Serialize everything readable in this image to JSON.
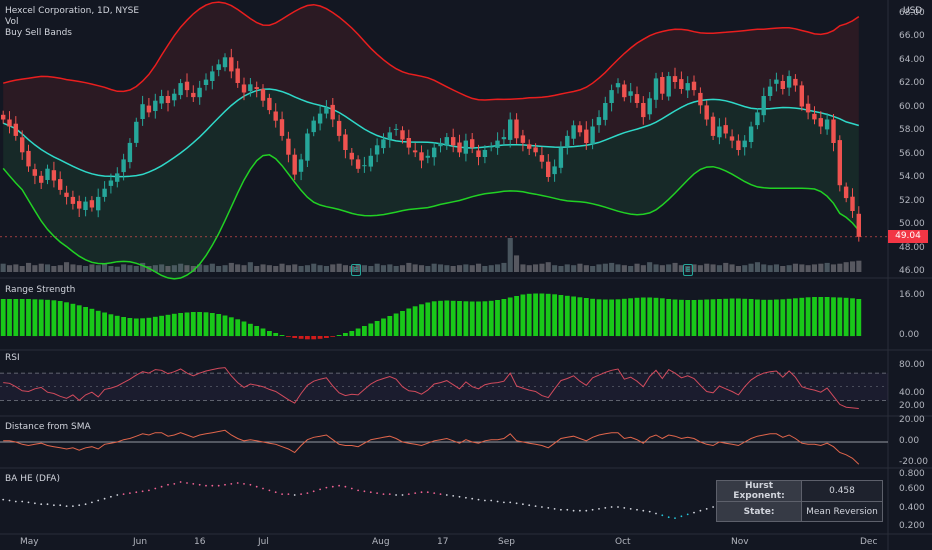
{
  "header": {
    "symbol_line": "Hexcel Corporation, 1D, NYSE",
    "vol_label": "Vol",
    "indicator_label": "Buy Sell Bands"
  },
  "currency": "USD",
  "last_price": "49.04",
  "panes": {
    "range_strength": "Range Strength",
    "rsi": "RSI",
    "distance": "Distance from SMA",
    "hurst": "BA HE (DFA)"
  },
  "hurst_table": {
    "exponent_label": "Hurst Exponent:",
    "exponent_value": "0.458",
    "state_label": "State:",
    "state_value": "Mean Reversion"
  },
  "earnings_marker": "E",
  "axes": {
    "price_ticks": [
      "68.00",
      "66.00",
      "64.00",
      "62.00",
      "60.00",
      "58.00",
      "56.00",
      "54.00",
      "52.00",
      "50.00",
      "48.00",
      "46.00"
    ],
    "range_ticks": [
      "16.00",
      "0.00"
    ],
    "rsi_ticks": [
      "80.00",
      "40.00",
      "20.00"
    ],
    "dist_ticks": [
      "20.00",
      "0.00",
      "-20.00"
    ],
    "hurst_ticks": [
      "0.800",
      "0.600",
      "0.400",
      "0.200"
    ],
    "x_ticks": [
      "May",
      "Jun",
      "16",
      "Jul",
      "Aug",
      "17",
      "Sep",
      "Oct",
      "Nov",
      "Dec"
    ]
  },
  "colors": {
    "background": "#131722",
    "up": "#26a69a",
    "down": "#ef5350",
    "upper_band": "#e91e1e",
    "mid_band": "#2fd8c8",
    "lower_band": "#21d124",
    "range_pos": "#19c819",
    "range_neg": "#d01b1b",
    "rsi_line": "#d14a5c",
    "dist_line": "#e0654b"
  },
  "chart_data": [
    {
      "type": "candlestick",
      "title": "Hexcel Corporation, 1D, NYSE",
      "ylim": [
        46,
        68.5
      ],
      "series": [
        {
          "name": "Close",
          "values": [
            59.0,
            58.4,
            57.6,
            56.2,
            55.0,
            54.2,
            53.6,
            54.8,
            53.8,
            53.0,
            52.4,
            51.8,
            51.4,
            52.0,
            51.5,
            52.4,
            53.1,
            53.8,
            54.4,
            55.6,
            57.0,
            58.8,
            60.3,
            59.6,
            60.6,
            61.0,
            60.4,
            61.2,
            62.1,
            61.5,
            60.9,
            61.7,
            62.4,
            63.1,
            63.7,
            64.3,
            63.1,
            62.1,
            61.3,
            62.0,
            61.6,
            60.6,
            59.8,
            58.9,
            57.6,
            56.0,
            54.3,
            55.6,
            57.8,
            58.9,
            59.5,
            60.0,
            59.0,
            57.6,
            56.4,
            55.6,
            54.8,
            55.1,
            55.9,
            56.8,
            57.3,
            57.9,
            58.2,
            57.3,
            56.6,
            56.2,
            55.5,
            55.9,
            56.6,
            57.0,
            57.5,
            56.8,
            56.2,
            57.2,
            56.6,
            55.8,
            56.4,
            56.7,
            57.2,
            57.5,
            59.0,
            57.4,
            57.0,
            56.5,
            56.2,
            55.4,
            54.1,
            55.0,
            56.6,
            57.6,
            58.5,
            57.9,
            57.0,
            58.4,
            59.2,
            60.4,
            61.5,
            62.1,
            60.9,
            61.4,
            60.4,
            59.2,
            60.8,
            62.5,
            61.2,
            62.7,
            62.2,
            61.6,
            62.1,
            61.5,
            60.2,
            59.0,
            57.6,
            58.4,
            57.8,
            57.2,
            56.4,
            57.2,
            58.4,
            59.6,
            61.0,
            61.8,
            62.4,
            61.6,
            62.7,
            61.9,
            60.1,
            59.6,
            59.0,
            58.4,
            59.0,
            57.0,
            53.4,
            52.3,
            51.2,
            49.0
          ]
        }
      ],
      "annotations": [
        "Earnings E (Jul)",
        "Earnings E (Oct)"
      ]
    },
    {
      "type": "bar",
      "title": "Vol",
      "values": [
        1.1,
        0.9,
        1.0,
        0.8,
        1.2,
        0.9,
        1.1,
        1.0,
        0.8,
        0.9,
        1.3,
        1.0,
        0.9,
        0.8,
        1.0,
        0.9,
        1.1,
        0.8,
        0.7,
        1.0,
        0.9,
        0.8,
        1.2,
        0.8,
        0.9,
        1.0,
        0.8,
        0.9,
        1.1,
        0.9,
        0.8,
        1.0,
        0.9,
        1.1,
        0.8,
        0.9,
        1.2,
        1.0,
        0.9,
        1.3,
        0.8,
        1.0,
        0.9,
        0.8,
        1.1,
        0.9,
        1.0,
        0.8,
        0.9,
        1.1,
        0.9,
        0.8,
        1.0,
        1.1,
        0.9,
        0.8,
        1.0,
        0.9,
        0.8,
        1.1,
        0.9,
        1.0,
        0.8,
        0.9,
        1.2,
        1.0,
        0.9,
        0.8,
        1.1,
        1.0,
        0.9,
        0.8,
        0.9,
        1.0,
        0.9,
        1.1,
        0.8,
        0.9,
        1.0,
        1.2,
        4.5,
        2.2,
        1.0,
        0.9,
        1.0,
        1.1,
        1.3,
        0.9,
        0.8,
        1.0,
        0.9,
        1.1,
        0.9,
        0.8,
        1.0,
        1.1,
        1.2,
        1.0,
        0.9,
        0.8,
        1.1,
        0.9,
        1.3,
        1.0,
        0.9,
        1.0,
        1.2,
        0.9,
        0.8,
        1.0,
        0.9,
        1.1,
        1.0,
        0.9,
        1.2,
        1.0,
        0.8,
        0.9,
        1.1,
        1.3,
        1.0,
        0.9,
        1.0,
        0.8,
        0.9,
        1.1,
        1.0,
        0.9,
        1.0,
        1.1,
        1.2,
        1.0,
        1.1,
        1.3,
        1.4,
        1.5,
        1.6
      ]
    },
    {
      "type": "bar",
      "title": "Range Strength",
      "ylim": [
        -4,
        20
      ],
      "values": [
        14.8,
        14.8,
        14.8,
        14.8,
        14.8,
        14.7,
        14.6,
        14.5,
        14.3,
        14.0,
        13.5,
        12.9,
        12.3,
        11.6,
        10.9,
        10.1,
        9.4,
        8.7,
        8.1,
        7.6,
        7.2,
        7.0,
        7.1,
        7.3,
        7.7,
        8.1,
        8.5,
        8.9,
        9.2,
        9.4,
        9.6,
        9.6,
        9.5,
        9.2,
        8.8,
        8.2,
        7.5,
        6.7,
        5.8,
        4.9,
        4.0,
        3.0,
        2.0,
        1.2,
        0.4,
        -0.3,
        -0.8,
        -1.1,
        -1.3,
        -1.3,
        -1.1,
        -0.8,
        -0.3,
        0.4,
        1.2,
        2.0,
        3.0,
        4.0,
        5.0,
        6.0,
        7.0,
        8.0,
        9.0,
        10.0,
        11.0,
        11.9,
        12.7,
        13.4,
        13.9,
        14.1,
        14.2,
        14.1,
        14.0,
        13.9,
        13.8,
        13.8,
        13.9,
        14.1,
        14.4,
        14.8,
        15.4,
        16.0,
        16.6,
        16.9,
        17.0,
        17.0,
        16.9,
        16.7,
        16.4,
        16.1,
        15.8,
        15.5,
        15.2,
        14.9,
        14.7,
        14.6,
        14.6,
        14.7,
        14.9,
        15.1,
        15.3,
        15.4,
        15.4,
        15.3,
        15.1,
        14.8,
        14.6,
        14.5,
        14.4,
        14.4,
        14.5,
        14.6,
        14.7,
        14.8,
        14.9,
        15.0,
        15.0,
        14.9,
        14.8,
        14.6,
        14.5,
        14.5,
        14.6,
        14.7,
        14.9,
        15.1,
        15.3,
        15.5,
        15.6,
        15.6,
        15.6,
        15.5,
        15.4,
        15.3,
        15.1,
        14.8,
        14.3,
        13.4,
        12.2,
        10.4
      ]
    },
    {
      "type": "line",
      "title": "RSI",
      "ylim": [
        10,
        95
      ],
      "values": [
        56,
        55,
        50,
        44,
        43,
        47,
        49,
        42,
        40,
        36,
        33,
        38,
        30,
        38,
        42,
        35,
        46,
        48,
        51,
        56,
        61,
        67,
        72,
        70,
        75,
        74,
        69,
        72,
        76,
        70,
        66,
        70,
        73,
        75,
        77,
        78,
        66,
        56,
        49,
        54,
        52,
        50,
        46,
        43,
        37,
        31,
        26,
        40,
        52,
        58,
        61,
        63,
        51,
        41,
        37,
        39,
        38,
        46,
        54,
        59,
        62,
        65,
        61,
        50,
        44,
        43,
        39,
        45,
        54,
        56,
        59,
        53,
        47,
        57,
        50,
        47,
        53,
        55,
        56,
        58,
        70,
        51,
        48,
        45,
        43,
        37,
        34,
        47,
        59,
        62,
        66,
        58,
        52,
        63,
        67,
        71,
        74,
        76,
        61,
        64,
        58,
        50,
        65,
        74,
        62,
        75,
        70,
        63,
        66,
        62,
        52,
        43,
        41,
        51,
        47,
        43,
        38,
        50,
        60,
        66,
        70,
        72,
        73,
        64,
        73,
        64,
        50,
        47,
        45,
        42,
        48,
        36,
        24,
        20,
        19,
        18
      ]
    },
    {
      "type": "line",
      "title": "Distance from SMA",
      "ylim": [
        -24,
        24
      ],
      "values": [
        1,
        1,
        0,
        -2,
        -3,
        -2,
        -1,
        -3,
        -4,
        -5,
        -6,
        -5,
        -7,
        -5,
        -4,
        -6,
        -2,
        -1,
        0,
        2,
        3,
        5,
        7,
        6,
        8,
        8,
        5,
        6,
        8,
        6,
        4,
        6,
        7,
        8,
        9,
        10,
        6,
        3,
        1,
        2,
        1,
        0,
        -1,
        -2,
        -4,
        -6,
        -9,
        -3,
        2,
        4,
        5,
        6,
        2,
        -2,
        -3,
        -3,
        -4,
        -1,
        2,
        3,
        4,
        5,
        3,
        0,
        -1,
        -2,
        -3,
        -1,
        1,
        2,
        3,
        1,
        -1,
        2,
        0,
        -1,
        1,
        2,
        2,
        3,
        7,
        1,
        0,
        -1,
        -2,
        -3,
        -5,
        -1,
        3,
        4,
        5,
        3,
        1,
        4,
        6,
        7,
        8,
        8,
        3,
        4,
        2,
        -1,
        4,
        6,
        3,
        6,
        5,
        3,
        4,
        3,
        0,
        -2,
        -3,
        0,
        -1,
        -2,
        -3,
        0,
        3,
        5,
        6,
        7,
        7,
        4,
        6,
        3,
        -1,
        -2,
        -2,
        -3,
        -1,
        -4,
        -9,
        -11,
        -14,
        -19
      ]
    },
    {
      "type": "scatter",
      "title": "BA HE (DFA)",
      "ylim": [
        0.15,
        0.82
      ],
      "values": [
        0.5,
        0.49,
        0.48,
        0.48,
        0.47,
        0.46,
        0.45,
        0.45,
        0.44,
        0.44,
        0.43,
        0.43,
        0.44,
        0.45,
        0.47,
        0.49,
        0.51,
        0.53,
        0.55,
        0.56,
        0.57,
        0.58,
        0.59,
        0.6,
        0.62,
        0.64,
        0.66,
        0.67,
        0.69,
        0.68,
        0.67,
        0.66,
        0.65,
        0.65,
        0.65,
        0.66,
        0.67,
        0.68,
        0.67,
        0.66,
        0.64,
        0.62,
        0.6,
        0.58,
        0.56,
        0.56,
        0.55,
        0.56,
        0.57,
        0.59,
        0.61,
        0.63,
        0.64,
        0.65,
        0.64,
        0.62,
        0.6,
        0.59,
        0.58,
        0.57,
        0.56,
        0.56,
        0.55,
        0.55,
        0.56,
        0.57,
        0.58,
        0.58,
        0.57,
        0.56,
        0.55,
        0.54,
        0.53,
        0.52,
        0.51,
        0.5,
        0.49,
        0.49,
        0.48,
        0.47,
        0.47,
        0.46,
        0.45,
        0.44,
        0.43,
        0.42,
        0.41,
        0.4,
        0.39,
        0.39,
        0.38,
        0.38,
        0.38,
        0.39,
        0.4,
        0.41,
        0.42,
        0.42,
        0.41,
        0.4,
        0.39,
        0.38,
        0.37,
        0.35,
        0.33,
        0.31,
        0.3,
        0.32,
        0.34,
        0.36,
        0.38,
        0.4,
        0.42,
        0.43,
        0.44,
        0.44,
        0.43,
        0.42,
        0.41,
        0.41,
        0.41,
        0.42,
        0.43,
        0.44,
        0.45,
        0.46,
        0.46,
        0.46,
        0.45,
        0.45,
        0.44,
        0.43,
        0.42,
        0.41,
        0.4,
        0.39
      ]
    }
  ]
}
